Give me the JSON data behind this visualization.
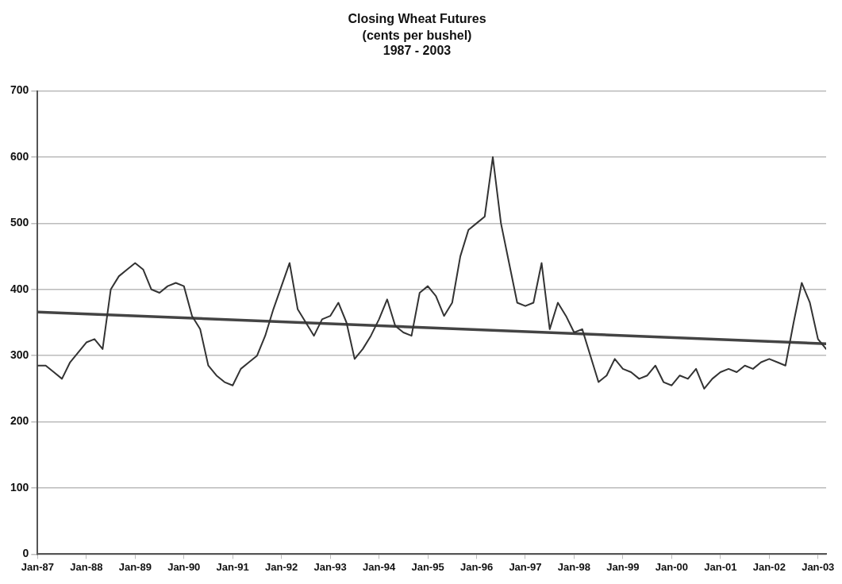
{
  "chart_data": {
    "type": "line",
    "title": "Closing Wheat Futures",
    "subtitle": "(cents per bushel)\n1987 - 2003",
    "xlim": [
      "1987-01",
      "2003-03"
    ],
    "xticks": [
      {
        "value": "1987-01",
        "label": "Jan-87"
      },
      {
        "value": "1988-01",
        "label": "Jan-88"
      },
      {
        "value": "1989-01",
        "label": "Jan-89"
      },
      {
        "value": "1990-01",
        "label": "Jan-90"
      },
      {
        "value": "1991-01",
        "label": "Jan-91"
      },
      {
        "value": "1992-01",
        "label": "Jan-92"
      },
      {
        "value": "1993-01",
        "label": "Jan-93"
      },
      {
        "value": "1994-01",
        "label": "Jan-94"
      },
      {
        "value": "1995-01",
        "label": "Jan-95"
      },
      {
        "value": "1996-01",
        "label": "Jan-96"
      },
      {
        "value": "1997-01",
        "label": "Jan-97"
      },
      {
        "value": "1998-01",
        "label": "Jan-98"
      },
      {
        "value": "1999-01",
        "label": "Jan-99"
      },
      {
        "value": "2000-01",
        "label": "Jan-00"
      },
      {
        "value": "2001-01",
        "label": "Jan-01"
      },
      {
        "value": "2002-01",
        "label": "Jan-02"
      },
      {
        "value": "2003-01",
        "label": "Jan-03"
      }
    ],
    "ylim": [
      0,
      700
    ],
    "yticks": [
      0,
      100,
      200,
      300,
      400,
      500,
      600,
      700
    ],
    "grid": "y",
    "legend": false,
    "marker": "none",
    "line_style": "solid",
    "series": [
      {
        "color": "#333333",
        "x": [
          "1987-01",
          "1987-03",
          "1987-05",
          "1987-07",
          "1987-09",
          "1987-11",
          "1988-01",
          "1988-03",
          "1988-05",
          "1988-07",
          "1988-09",
          "1988-11",
          "1989-01",
          "1989-03",
          "1989-05",
          "1989-07",
          "1989-09",
          "1989-11",
          "1990-01",
          "1990-03",
          "1990-05",
          "1990-07",
          "1990-09",
          "1990-11",
          "1991-01",
          "1991-03",
          "1991-05",
          "1991-07",
          "1991-09",
          "1991-11",
          "1992-01",
          "1992-03",
          "1992-05",
          "1992-07",
          "1992-09",
          "1992-11",
          "1993-01",
          "1993-03",
          "1993-05",
          "1993-07",
          "1993-09",
          "1993-11",
          "1994-01",
          "1994-03",
          "1994-05",
          "1994-07",
          "1994-09",
          "1994-11",
          "1995-01",
          "1995-03",
          "1995-05",
          "1995-07",
          "1995-09",
          "1995-11",
          "1996-01",
          "1996-03",
          "1996-05",
          "1996-07",
          "1996-09",
          "1996-11",
          "1997-01",
          "1997-03",
          "1997-05",
          "1997-07",
          "1997-09",
          "1997-11",
          "1998-01",
          "1998-03",
          "1998-05",
          "1998-07",
          "1998-09",
          "1998-11",
          "1999-01",
          "1999-03",
          "1999-05",
          "1999-07",
          "1999-09",
          "1999-11",
          "2000-01",
          "2000-03",
          "2000-05",
          "2000-07",
          "2000-09",
          "2000-11",
          "2001-01",
          "2001-03",
          "2001-05",
          "2001-07",
          "2001-09",
          "2001-11",
          "2002-01",
          "2002-03",
          "2002-05",
          "2002-07",
          "2002-09",
          "2002-11",
          "2003-01",
          "2003-03"
        ],
        "values": [
          285,
          285,
          275,
          265,
          290,
          305,
          320,
          325,
          310,
          400,
          420,
          430,
          440,
          430,
          400,
          395,
          405,
          410,
          405,
          360,
          340,
          285,
          270,
          260,
          255,
          280,
          290,
          300,
          330,
          370,
          405,
          440,
          370,
          350,
          330,
          355,
          360,
          380,
          350,
          295,
          310,
          330,
          355,
          385,
          345,
          335,
          330,
          395,
          405,
          390,
          360,
          380,
          450,
          490,
          500,
          510,
          600,
          500,
          440,
          380,
          375,
          380,
          440,
          340,
          380,
          360,
          335,
          340,
          300,
          260,
          270,
          295,
          280,
          275,
          265,
          270,
          285,
          260,
          255,
          270,
          265,
          280,
          250,
          265,
          275,
          280,
          275,
          285,
          280,
          290,
          295,
          290,
          285,
          350,
          410,
          380,
          325,
          310
        ]
      },
      {
        "color": "#444444",
        "x": [
          "1987-01",
          "2003-03"
        ],
        "values": [
          366,
          318
        ]
      }
    ]
  }
}
